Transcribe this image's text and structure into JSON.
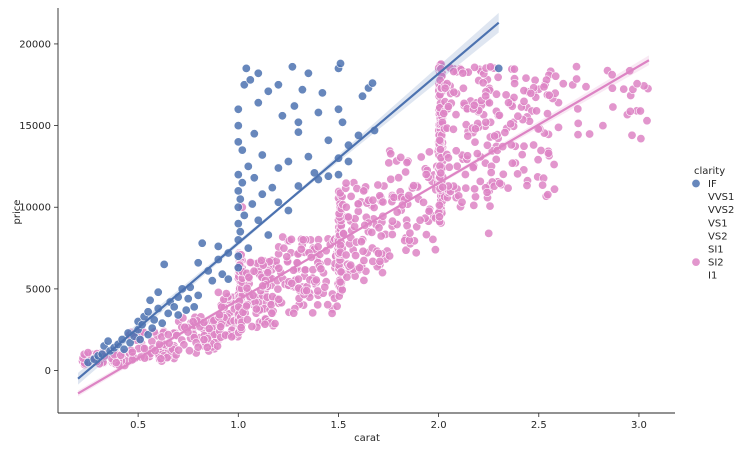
{
  "chart_data": {
    "type": "scatter",
    "title": "",
    "xlabel": "carat",
    "ylabel": "price",
    "xlim": [
      0.1,
      3.18
    ],
    "ylim": [
      -2600,
      22200
    ],
    "xticks": [
      0.5,
      1.0,
      1.5,
      2.0,
      2.5,
      3.0
    ],
    "xtick_labels": [
      "0.5",
      "1.0",
      "1.5",
      "2.0",
      "2.5",
      "3.0"
    ],
    "yticks": [
      0,
      5000,
      10000,
      15000,
      20000
    ],
    "ytick_labels": [
      "0",
      "5000",
      "10000",
      "15000",
      "20000"
    ],
    "grid": false,
    "legend": {
      "title": "clarity",
      "placement": "right",
      "entries": [
        {
          "label": "IF",
          "color": "#4c72b0",
          "marker": true
        },
        {
          "label": "VVS1",
          "color": null,
          "marker": false
        },
        {
          "label": "VVS2",
          "color": null,
          "marker": false
        },
        {
          "label": "VS1",
          "color": null,
          "marker": false
        },
        {
          "label": "VS2",
          "color": null,
          "marker": false
        },
        {
          "label": "SI1",
          "color": null,
          "marker": false
        },
        {
          "label": "SI2",
          "color": "#dd84c4",
          "marker": true
        },
        {
          "label": "I1",
          "color": null,
          "marker": false
        }
      ]
    },
    "series": [
      {
        "name": "IF",
        "color": "#4c72b0",
        "regression": {
          "x_start": 0.2,
          "x_end": 2.3,
          "y_start": -500,
          "y_end": 21300,
          "ci_halfwidth_end": 600
        },
        "points": [
          [
            0.25,
            500
          ],
          [
            0.28,
            700
          ],
          [
            0.3,
            900
          ],
          [
            0.32,
            1000
          ],
          [
            0.33,
            1500
          ],
          [
            0.35,
            1800
          ],
          [
            0.36,
            1200
          ],
          [
            0.38,
            1400
          ],
          [
            0.4,
            1600
          ],
          [
            0.42,
            1900
          ],
          [
            0.43,
            1300
          ],
          [
            0.45,
            2300
          ],
          [
            0.46,
            1700
          ],
          [
            0.48,
            2100
          ],
          [
            0.5,
            2500
          ],
          [
            0.5,
            3000
          ],
          [
            0.51,
            1900
          ],
          [
            0.52,
            2800
          ],
          [
            0.53,
            3300
          ],
          [
            0.55,
            2200
          ],
          [
            0.55,
            3600
          ],
          [
            0.56,
            4300
          ],
          [
            0.57,
            2600
          ],
          [
            0.58,
            3100
          ],
          [
            0.6,
            3800
          ],
          [
            0.6,
            4800
          ],
          [
            0.62,
            2900
          ],
          [
            0.63,
            6500
          ],
          [
            0.65,
            3500
          ],
          [
            0.66,
            4200
          ],
          [
            0.68,
            3900
          ],
          [
            0.7,
            4500
          ],
          [
            0.7,
            3400
          ],
          [
            0.72,
            5000
          ],
          [
            0.74,
            3700
          ],
          [
            0.75,
            4400
          ],
          [
            0.76,
            5100
          ],
          [
            0.78,
            3900
          ],
          [
            0.8,
            4600
          ],
          [
            0.8,
            6600
          ],
          [
            0.82,
            7800
          ],
          [
            0.85,
            6100
          ],
          [
            0.87,
            5500
          ],
          [
            0.9,
            6800
          ],
          [
            0.9,
            7600
          ],
          [
            0.92,
            5900
          ],
          [
            0.95,
            7200
          ],
          [
            0.95,
            5600
          ],
          [
            1.0,
            7000
          ],
          [
            1.0,
            8000
          ],
          [
            1.0,
            9000
          ],
          [
            1.0,
            10000
          ],
          [
            1.0,
            11000
          ],
          [
            1.0,
            12000
          ],
          [
            1.0,
            14000
          ],
          [
            1.0,
            15000
          ],
          [
            1.0,
            16000
          ],
          [
            1.0,
            6300
          ],
          [
            1.01,
            8500
          ],
          [
            1.01,
            10500
          ],
          [
            1.02,
            11500
          ],
          [
            1.02,
            13500
          ],
          [
            1.03,
            17500
          ],
          [
            1.03,
            9500
          ],
          [
            1.04,
            18500
          ],
          [
            1.05,
            12500
          ],
          [
            1.05,
            7500
          ],
          [
            1.06,
            17800
          ],
          [
            1.07,
            10200
          ],
          [
            1.08,
            11800
          ],
          [
            1.08,
            14500
          ],
          [
            1.1,
            18200
          ],
          [
            1.1,
            9200
          ],
          [
            1.1,
            16400
          ],
          [
            1.12,
            10800
          ],
          [
            1.12,
            13200
          ],
          [
            1.15,
            17100
          ],
          [
            1.15,
            8300
          ],
          [
            1.17,
            11200
          ],
          [
            1.2,
            12400
          ],
          [
            1.2,
            10300
          ],
          [
            1.2,
            17500
          ],
          [
            1.22,
            15600
          ],
          [
            1.25,
            12800
          ],
          [
            1.25,
            9800
          ],
          [
            1.27,
            18600
          ],
          [
            1.28,
            16200
          ],
          [
            1.3,
            14600
          ],
          [
            1.3,
            11300
          ],
          [
            1.3,
            15200
          ],
          [
            1.32,
            17200
          ],
          [
            1.35,
            13100
          ],
          [
            1.35,
            18200
          ],
          [
            1.38,
            12100
          ],
          [
            1.4,
            15800
          ],
          [
            1.4,
            11700
          ],
          [
            1.42,
            17000
          ],
          [
            1.45,
            14100
          ],
          [
            1.45,
            11900
          ],
          [
            1.5,
            13000
          ],
          [
            1.5,
            12000
          ],
          [
            1.5,
            16000
          ],
          [
            1.5,
            18500
          ],
          [
            1.51,
            18800
          ],
          [
            1.52,
            15200
          ],
          [
            1.55,
            13800
          ],
          [
            1.55,
            12800
          ],
          [
            1.6,
            14400
          ],
          [
            1.62,
            16800
          ],
          [
            1.65,
            17300
          ],
          [
            1.67,
            17600
          ],
          [
            1.68,
            14700
          ],
          [
            2.3,
            18500
          ]
        ]
      },
      {
        "name": "SI2",
        "color": "#dd84c4",
        "regression": {
          "x_start": 0.2,
          "x_end": 3.05,
          "y_start": -1400,
          "y_end": 19000,
          "ci_halfwidth_end": 300
        },
        "clusters": [
          {
            "x": [
              0.22,
              0.45
            ],
            "y": [
              300,
              1100
            ],
            "n": 50
          },
          {
            "x": [
              0.45,
              0.7
            ],
            "y": [
              500,
              2400
            ],
            "n": 70
          },
          {
            "x": [
              0.7,
              0.9
            ],
            "y": [
              1000,
              3400
            ],
            "n": 60
          },
          {
            "x": [
              0.9,
              1.0
            ],
            "y": [
              1800,
              4800
            ],
            "n": 50
          },
          {
            "x": [
              1.0,
              1.02
            ],
            "y": [
              2300,
              7200
            ],
            "n": 110
          },
          {
            "x": [
              1.02,
              1.2
            ],
            "y": [
              2500,
              6800
            ],
            "n": 90
          },
          {
            "x": [
              1.2,
              1.5
            ],
            "y": [
              3500,
              8200
            ],
            "n": 110
          },
          {
            "x": [
              1.5,
              1.52
            ],
            "y": [
              4500,
              11000
            ],
            "n": 90
          },
          {
            "x": [
              1.52,
              1.75
            ],
            "y": [
              5500,
              11500
            ],
            "n": 80
          },
          {
            "x": [
              1.75,
              2.0
            ],
            "y": [
              7000,
              13500
            ],
            "n": 70
          },
          {
            "x": [
              2.0,
              2.02
            ],
            "y": [
              9000,
              18800
            ],
            "n": 150
          },
          {
            "x": [
              2.02,
              2.3
            ],
            "y": [
              10000,
              18600
            ],
            "n": 130
          },
          {
            "x": [
              2.3,
              2.6
            ],
            "y": [
              10500,
              18700
            ],
            "n": 80
          },
          {
            "x": [
              2.6,
              3.05
            ],
            "y": [
              14000,
              18800
            ],
            "n": 25
          }
        ],
        "outliers": [
          [
            0.25,
            1100
          ],
          [
            0.65,
            2200
          ],
          [
            1.02,
            10000
          ],
          [
            2.25,
            8400
          ],
          [
            2.82,
            15000
          ],
          [
            3.01,
            14200
          ],
          [
            3.04,
            15300
          ]
        ]
      }
    ]
  }
}
